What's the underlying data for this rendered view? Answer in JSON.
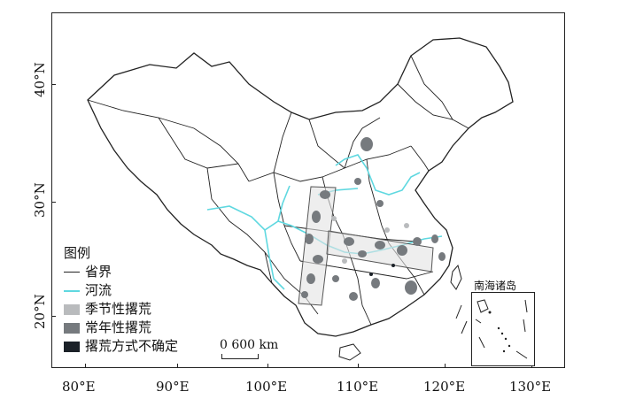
{
  "axes": {
    "x_ticks": [
      "80°E",
      "90°E",
      "100°E",
      "110°E",
      "120°E",
      "130°E"
    ],
    "y_ticks": [
      "40°N",
      "30°N",
      "20°N"
    ]
  },
  "legend": {
    "title": "图例",
    "items": [
      {
        "label": "省界",
        "kind": "line",
        "color": "#222222"
      },
      {
        "label": "河流",
        "kind": "river",
        "color": "#5fd8e0"
      },
      {
        "label": "季节性撂荒",
        "kind": "box",
        "color": "#b9bbbd"
      },
      {
        "label": "常年性撂荒",
        "kind": "box",
        "color": "#767a7e"
      },
      {
        "label": "撂荒方式不确定",
        "kind": "box",
        "color": "#1b2128"
      }
    ]
  },
  "scale": {
    "label": "0 600 km"
  },
  "inset": {
    "title": "南海诸岛"
  },
  "colors": {
    "border": "#222222",
    "river": "#5fd8e0",
    "seasonal": "#b9bbbd",
    "perennial": "#767a7e",
    "uncertain": "#1b2128",
    "transect_fill": "#e3e3e3"
  }
}
